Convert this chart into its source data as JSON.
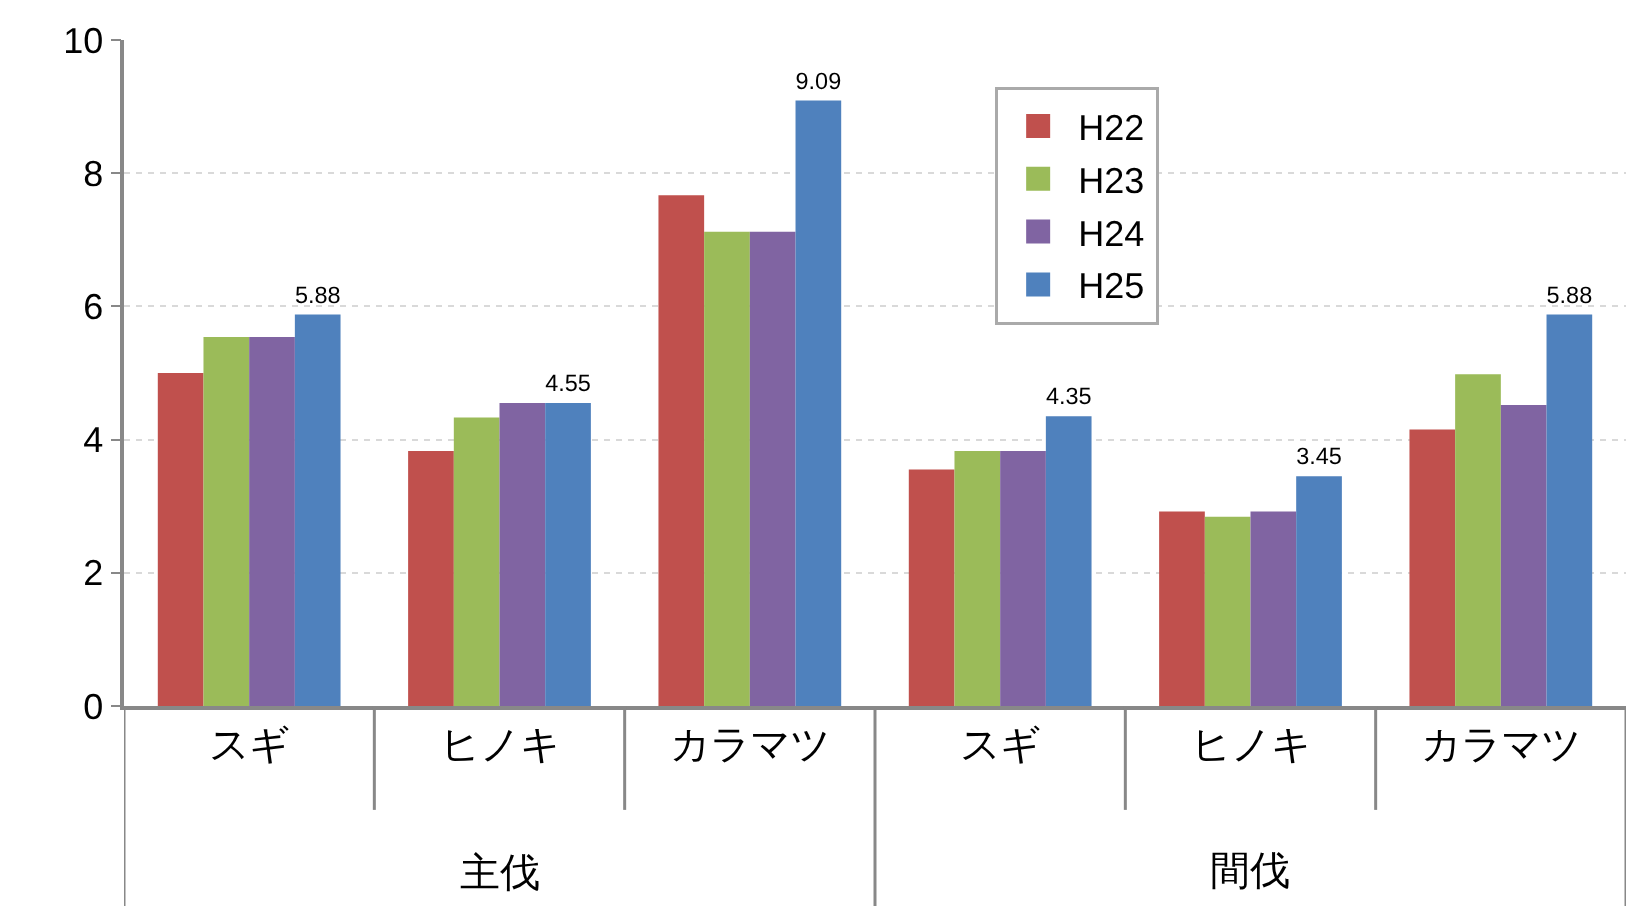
{
  "chart_data": {
    "type": "bar",
    "categories": [
      "スギ",
      "ヒノキ",
      "カラマツ",
      "スギ",
      "ヒノキ",
      "カラマツ"
    ],
    "series": [
      {
        "name": "H22",
        "color": "#c0504d",
        "values": [
          5.0,
          3.83,
          7.67,
          3.55,
          2.92,
          4.15
        ]
      },
      {
        "name": "H23",
        "color": "#9bbb59",
        "values": [
          5.54,
          4.33,
          7.12,
          3.83,
          2.84,
          4.98
        ]
      },
      {
        "name": "H24",
        "color": "#8064a2",
        "values": [
          5.54,
          4.55,
          7.12,
          3.83,
          2.92,
          4.52
        ]
      },
      {
        "name": "H25",
        "color": "#4f81bd",
        "values": [
          5.88,
          4.55,
          9.09,
          4.35,
          3.45,
          5.88
        ],
        "value_labels": [
          "5.88",
          "4.55",
          "9.09",
          "4.35",
          "3.45",
          "5.88"
        ]
      }
    ],
    "annotations": [
      "主伐",
      "間伐"
    ],
    "ylim": [
      0,
      10
    ],
    "yticks": [
      0,
      2,
      4,
      6,
      8,
      10
    ],
    "grid": "y",
    "legend": "top right"
  }
}
